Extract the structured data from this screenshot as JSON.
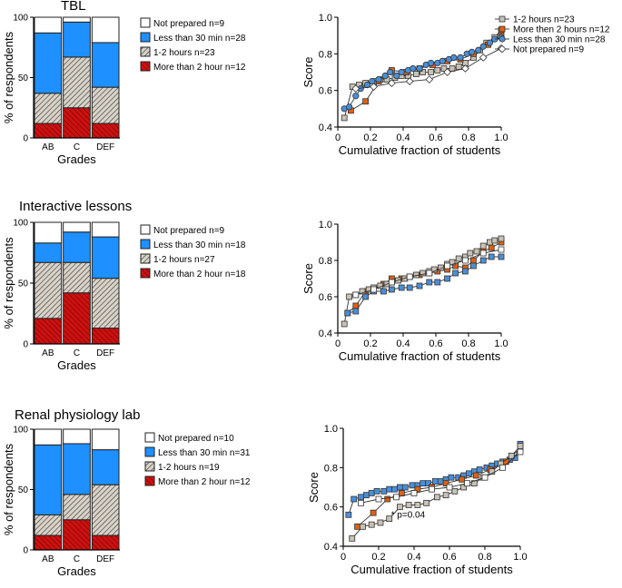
{
  "colors": {
    "not_prepared": "#ffffff",
    "less_than_30": "#1e90ff",
    "one_two_hours": "#b8b0a2",
    "more_than_2": "#cc1111",
    "line_orange": "#e06010",
    "line_blue": "#4a8fd8",
    "line_gray": "#c9c2b5",
    "line_white": "#ffffff"
  },
  "chart_data": [
    {
      "type": "bar",
      "stacked": true,
      "title": "TBL",
      "xlabel": "Grades",
      "ylabel": "% of respondents",
      "categories": [
        "AB",
        "C",
        "DEF"
      ],
      "ylim": [
        0,
        100
      ],
      "yticks": [
        "0",
        "50",
        "100"
      ],
      "series": [
        {
          "name": "More than 2 hour n=12",
          "values": [
            12,
            25,
            12
          ]
        },
        {
          "name": "1-2 hours n=23",
          "values": [
            25,
            42,
            30
          ]
        },
        {
          "name": "Less than 30 min n=28",
          "values": [
            50,
            29,
            37
          ]
        },
        {
          "name": "Not prepared n=9",
          "values": [
            13,
            4,
            21
          ]
        }
      ]
    },
    {
      "type": "line",
      "xlabel": "Cumulative fraction of students",
      "ylabel": "Score",
      "xlim": [
        0,
        1
      ],
      "ylim": [
        0.4,
        1.0
      ],
      "xticks": [
        "0",
        "0.2",
        "0.4",
        "0.6",
        "0.8",
        "1.0"
      ],
      "yticks": [
        "0.4",
        "0.6",
        "0.8",
        "1.0"
      ],
      "series": [
        {
          "name": "1-2 hours n=23",
          "x": [
            0.04,
            0.09,
            0.13,
            0.17,
            0.22,
            0.26,
            0.3,
            0.35,
            0.39,
            0.43,
            0.48,
            0.52,
            0.57,
            0.61,
            0.65,
            0.7,
            0.74,
            0.78,
            0.83,
            0.87,
            0.91,
            0.96,
            1.0
          ],
          "y": [
            0.45,
            0.62,
            0.63,
            0.64,
            0.65,
            0.66,
            0.66,
            0.67,
            0.68,
            0.68,
            0.69,
            0.7,
            0.7,
            0.71,
            0.72,
            0.72,
            0.73,
            0.75,
            0.78,
            0.82,
            0.86,
            0.89,
            0.93
          ]
        },
        {
          "name": "More then 2 hours n=12",
          "x": [
            0.08,
            0.17,
            0.25,
            0.33,
            0.42,
            0.5,
            0.58,
            0.67,
            0.75,
            0.83,
            0.92,
            1.0
          ],
          "y": [
            0.49,
            0.54,
            0.65,
            0.71,
            0.7,
            0.72,
            0.74,
            0.76,
            0.77,
            0.8,
            0.85,
            0.9
          ]
        },
        {
          "name": "Less than 30 min n=28",
          "x": [
            0.04,
            0.07,
            0.11,
            0.14,
            0.18,
            0.21,
            0.25,
            0.29,
            0.32,
            0.36,
            0.39,
            0.43,
            0.46,
            0.5,
            0.54,
            0.57,
            0.61,
            0.64,
            0.68,
            0.71,
            0.75,
            0.79,
            0.82,
            0.86,
            0.89,
            0.93,
            0.96,
            1.0
          ],
          "y": [
            0.5,
            0.51,
            0.57,
            0.61,
            0.63,
            0.65,
            0.66,
            0.68,
            0.7,
            0.68,
            0.7,
            0.71,
            0.72,
            0.72,
            0.74,
            0.75,
            0.75,
            0.76,
            0.77,
            0.78,
            0.78,
            0.8,
            0.81,
            0.82,
            0.84,
            0.86,
            0.88,
            0.89
          ]
        },
        {
          "name": "Not prepared n=9",
          "x": [
            0.11,
            0.22,
            0.33,
            0.44,
            0.56,
            0.67,
            0.78,
            0.89,
            1.0
          ],
          "y": [
            0.61,
            0.62,
            0.64,
            0.65,
            0.66,
            0.7,
            0.72,
            0.78,
            0.83
          ]
        }
      ]
    },
    {
      "type": "bar",
      "stacked": true,
      "title": "Interactive lessons",
      "xlabel": "Grades",
      "ylabel": "% of respondents",
      "categories": [
        "AB",
        "C",
        "DEF"
      ],
      "ylim": [
        0,
        100
      ],
      "yticks": [
        "0",
        "50",
        "100"
      ],
      "series": [
        {
          "name": "More than 2 hour n=18",
          "values": [
            21,
            42,
            13
          ]
        },
        {
          "name": "1-2 hours n=27",
          "values": [
            46,
            25,
            41
          ]
        },
        {
          "name": "Less than 30 min n=18",
          "values": [
            16,
            25,
            34
          ]
        },
        {
          "name": "Not prepared n=9",
          "values": [
            17,
            8,
            12
          ]
        }
      ]
    },
    {
      "type": "line",
      "xlabel": "Cumulative fraction of students",
      "ylabel": "Score",
      "xlim": [
        0,
        1
      ],
      "ylim": [
        0.4,
        1.0
      ],
      "xticks": [
        "0",
        "0.2",
        "0.4",
        "0.6",
        "0.8",
        "1.0"
      ],
      "yticks": [
        "0.4",
        "0.6",
        "0.8",
        "1.0"
      ],
      "series": [
        {
          "name": "More then 2 hours n=18",
          "x": [
            0.06,
            0.11,
            0.17,
            0.22,
            0.28,
            0.33,
            0.39,
            0.44,
            0.5,
            0.56,
            0.61,
            0.67,
            0.72,
            0.78,
            0.83,
            0.89,
            0.94,
            1.0
          ],
          "y": [
            0.51,
            0.55,
            0.63,
            0.64,
            0.67,
            0.7,
            0.7,
            0.71,
            0.72,
            0.73,
            0.74,
            0.75,
            0.77,
            0.76,
            0.8,
            0.85,
            0.87,
            0.9
          ]
        },
        {
          "name": "1-2 hours n=27",
          "x": [
            0.04,
            0.07,
            0.11,
            0.15,
            0.19,
            0.22,
            0.26,
            0.3,
            0.33,
            0.37,
            0.41,
            0.44,
            0.48,
            0.52,
            0.56,
            0.59,
            0.63,
            0.67,
            0.7,
            0.74,
            0.78,
            0.81,
            0.85,
            0.89,
            0.93,
            0.96,
            1.0
          ],
          "y": [
            0.45,
            0.6,
            0.61,
            0.63,
            0.64,
            0.65,
            0.66,
            0.67,
            0.68,
            0.69,
            0.7,
            0.71,
            0.72,
            0.73,
            0.74,
            0.75,
            0.76,
            0.78,
            0.79,
            0.81,
            0.82,
            0.84,
            0.85,
            0.88,
            0.9,
            0.91,
            0.92
          ]
        },
        {
          "name": "Less than 30 min n=18",
          "x": [
            0.06,
            0.11,
            0.17,
            0.22,
            0.28,
            0.33,
            0.39,
            0.44,
            0.5,
            0.56,
            0.61,
            0.67,
            0.72,
            0.78,
            0.83,
            0.89,
            0.94,
            1.0
          ],
          "y": [
            0.51,
            0.52,
            0.6,
            0.63,
            0.63,
            0.64,
            0.65,
            0.65,
            0.66,
            0.68,
            0.68,
            0.7,
            0.73,
            0.74,
            0.77,
            0.8,
            0.82,
            0.82
          ]
        },
        {
          "name": "Not prepared n=9",
          "x": [
            0.11,
            0.22,
            0.33,
            0.44,
            0.56,
            0.67,
            0.78,
            0.89,
            1.0
          ],
          "y": [
            0.61,
            0.64,
            0.68,
            0.71,
            0.73,
            0.77,
            0.8,
            0.84,
            0.86
          ]
        }
      ]
    },
    {
      "type": "bar",
      "stacked": true,
      "title": "Renal physiology lab",
      "xlabel": "Grades",
      "ylabel": "% of respondents",
      "categories": [
        "AB",
        "C",
        "DEF"
      ],
      "ylim": [
        0,
        100
      ],
      "yticks": [
        "0",
        "50",
        "100"
      ],
      "series": [
        {
          "name": "More than 2 hour n=12",
          "values": [
            12,
            25,
            12
          ]
        },
        {
          "name": "1-2 hours n=19",
          "values": [
            17,
            21,
            42
          ]
        },
        {
          "name": "Less than 30 min n=31",
          "values": [
            58,
            42,
            29
          ]
        },
        {
          "name": "Not prepared n=10",
          "values": [
            13,
            12,
            17
          ]
        }
      ]
    },
    {
      "type": "line",
      "xlabel": "Cumulative fraction of students",
      "ylabel": "Score",
      "xlim": [
        0,
        1
      ],
      "ylim": [
        0.4,
        1.0
      ],
      "xticks": [
        "0",
        "0.2",
        "0.4",
        "0.6",
        "0.8",
        "1.0"
      ],
      "yticks": [
        "0.4",
        "0.6",
        "0.8",
        "1.0"
      ],
      "annotation": "* p=0.04",
      "series": [
        {
          "name": "Less than 30 min n=31",
          "x": [
            0.03,
            0.06,
            0.1,
            0.13,
            0.16,
            0.19,
            0.23,
            0.26,
            0.29,
            0.32,
            0.35,
            0.39,
            0.42,
            0.45,
            0.48,
            0.52,
            0.55,
            0.58,
            0.61,
            0.65,
            0.68,
            0.71,
            0.74,
            0.77,
            0.81,
            0.84,
            0.87,
            0.9,
            0.94,
            0.97,
            1.0
          ],
          "y": [
            0.56,
            0.64,
            0.65,
            0.66,
            0.67,
            0.68,
            0.68,
            0.69,
            0.69,
            0.7,
            0.7,
            0.71,
            0.71,
            0.72,
            0.72,
            0.73,
            0.73,
            0.74,
            0.75,
            0.75,
            0.76,
            0.77,
            0.78,
            0.79,
            0.8,
            0.81,
            0.82,
            0.83,
            0.84,
            0.85,
            0.92
          ]
        },
        {
          "name": "More than 2 hour n=12",
          "x": [
            0.08,
            0.17,
            0.25,
            0.33,
            0.42,
            0.5,
            0.58,
            0.67,
            0.75,
            0.83,
            0.92,
            1.0
          ],
          "y": [
            0.5,
            0.57,
            0.64,
            0.67,
            0.69,
            0.7,
            0.72,
            0.74,
            0.76,
            0.79,
            0.83,
            0.9
          ]
        },
        {
          "name": "1-2 hours n=19",
          "x": [
            0.05,
            0.11,
            0.16,
            0.21,
            0.26,
            0.32,
            0.37,
            0.42,
            0.47,
            0.53,
            0.58,
            0.63,
            0.68,
            0.74,
            0.79,
            0.84,
            0.89,
            0.95,
            1.0
          ],
          "y": [
            0.44,
            0.5,
            0.51,
            0.52,
            0.54,
            0.6,
            0.61,
            0.61,
            0.62,
            0.65,
            0.66,
            0.68,
            0.7,
            0.72,
            0.75,
            0.78,
            0.82,
            0.86,
            0.91
          ]
        },
        {
          "name": "Not prepared n=10",
          "x": [
            0.1,
            0.2,
            0.3,
            0.4,
            0.5,
            0.6,
            0.7,
            0.8,
            0.9,
            1.0
          ],
          "y": [
            0.62,
            0.64,
            0.65,
            0.67,
            0.69,
            0.7,
            0.72,
            0.75,
            0.8,
            0.88
          ]
        }
      ]
    }
  ]
}
